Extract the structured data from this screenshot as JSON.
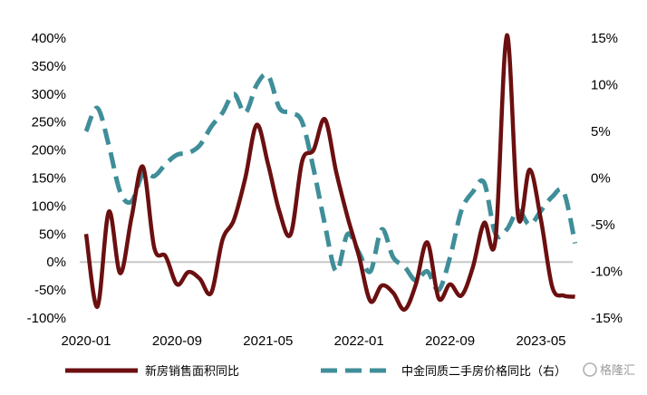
{
  "chart_data": {
    "type": "line",
    "x_ticks": [
      "2020-01",
      "2020-09",
      "2021-05",
      "2022-01",
      "2022-09",
      "2023-05"
    ],
    "left_axis": {
      "ticks": [
        "400%",
        "350%",
        "300%",
        "250%",
        "200%",
        "150%",
        "100%",
        "50%",
        "0%",
        "-50%",
        "-100%"
      ],
      "range": [
        -100,
        400
      ]
    },
    "right_axis": {
      "ticks": [
        "15%",
        "10%",
        "5%",
        "0%",
        "-5%",
        "-10%",
        "-15%"
      ],
      "range": [
        -15,
        15
      ]
    },
    "zero_line": true,
    "legend_position": "bottom",
    "series": [
      {
        "name": "新房销售面积同比",
        "axis": "left",
        "color": "#6b0f10",
        "style": "solid",
        "points": [
          [
            "2020-01",
            50
          ],
          [
            "2020-02",
            -80
          ],
          [
            "2020-03",
            90
          ],
          [
            "2020-04",
            -20
          ],
          [
            "2020-05",
            80
          ],
          [
            "2020-06",
            170
          ],
          [
            "2020-07",
            25
          ],
          [
            "2020-08",
            10
          ],
          [
            "2020-09",
            -40
          ],
          [
            "2020-10",
            -18
          ],
          [
            "2020-11",
            -30
          ],
          [
            "2020-12",
            -55
          ],
          [
            "2021-01",
            40
          ],
          [
            "2021-02",
            75
          ],
          [
            "2021-03",
            150
          ],
          [
            "2021-04",
            245
          ],
          [
            "2021-05",
            175
          ],
          [
            "2021-06",
            90
          ],
          [
            "2021-07",
            50
          ],
          [
            "2021-08",
            180
          ],
          [
            "2021-09",
            200
          ],
          [
            "2021-10",
            255
          ],
          [
            "2021-11",
            160
          ],
          [
            "2021-12",
            80
          ],
          [
            "2022-01",
            10
          ],
          [
            "2022-02",
            -70
          ],
          [
            "2022-03",
            -42
          ],
          [
            "2022-04",
            -55
          ],
          [
            "2022-05",
            -85
          ],
          [
            "2022-06",
            -40
          ],
          [
            "2022-07",
            35
          ],
          [
            "2022-08",
            -65
          ],
          [
            "2022-09",
            -40
          ],
          [
            "2022-10",
            -60
          ],
          [
            "2022-11",
            -10
          ],
          [
            "2022-12",
            70
          ],
          [
            "2023-01",
            40
          ],
          [
            "2023-02",
            405
          ],
          [
            "2023-03",
            80
          ],
          [
            "2023-04",
            165
          ],
          [
            "2023-05",
            75
          ],
          [
            "2023-06",
            -45
          ],
          [
            "2023-07",
            -60
          ],
          [
            "2023-08",
            -62
          ]
        ]
      },
      {
        "name": "中金同质二手房价格同比（右）",
        "axis": "right",
        "color": "#3f8e99",
        "style": "dashed",
        "points": [
          [
            "2020-01",
            5
          ],
          [
            "2020-02",
            7.5
          ],
          [
            "2020-03",
            3.5
          ],
          [
            "2020-04",
            -1.5
          ],
          [
            "2020-05",
            -2.5
          ],
          [
            "2020-06",
            0.5
          ],
          [
            "2020-07",
            0.2
          ],
          [
            "2020-08",
            1.5
          ],
          [
            "2020-09",
            2.5
          ],
          [
            "2020-10",
            2.7
          ],
          [
            "2020-11",
            3.5
          ],
          [
            "2020-12",
            5.5
          ],
          [
            "2021-01",
            7
          ],
          [
            "2021-02",
            9
          ],
          [
            "2021-03",
            7
          ],
          [
            "2021-04",
            10
          ],
          [
            "2021-05",
            11
          ],
          [
            "2021-06",
            7.5
          ],
          [
            "2021-07",
            7
          ],
          [
            "2021-08",
            6
          ],
          [
            "2021-09",
            1
          ],
          [
            "2021-10",
            -5
          ],
          [
            "2021-11",
            -10
          ],
          [
            "2021-12",
            -6
          ],
          [
            "2022-01",
            -8
          ],
          [
            "2022-02",
            -10
          ],
          [
            "2022-03",
            -5.5
          ],
          [
            "2022-04",
            -8.5
          ],
          [
            "2022-05",
            -9.5
          ],
          [
            "2022-06",
            -11
          ],
          [
            "2022-07",
            -10
          ],
          [
            "2022-08",
            -12
          ],
          [
            "2022-09",
            -8.5
          ],
          [
            "2022-10",
            -3.5
          ],
          [
            "2022-11",
            -1.5
          ],
          [
            "2022-12",
            -0.5
          ],
          [
            "2023-01",
            -6
          ],
          [
            "2023-02",
            -5.5
          ],
          [
            "2023-03",
            -3.5
          ],
          [
            "2023-04",
            -5
          ],
          [
            "2023-05",
            -3.5
          ],
          [
            "2023-06",
            -2
          ],
          [
            "2023-07",
            -1.5
          ],
          [
            "2023-08",
            -7
          ]
        ]
      }
    ]
  },
  "watermark": "格隆汇"
}
